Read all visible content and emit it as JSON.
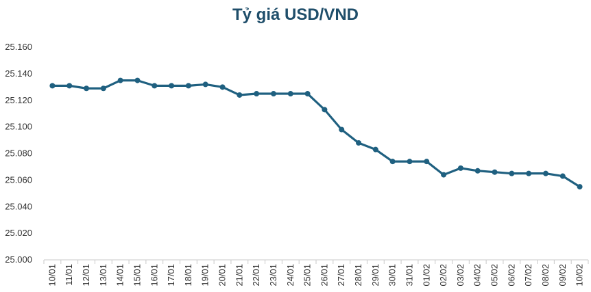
{
  "chart_data": {
    "type": "line",
    "title": "Tỷ giá USD/VND",
    "xlabel": "",
    "ylabel": "",
    "ylim": [
      25000,
      25160
    ],
    "y_ticks": [
      "25.000",
      "25.020",
      "25.040",
      "25.060",
      "25.080",
      "25.100",
      "25.120",
      "25.140",
      "25.160"
    ],
    "grid": false,
    "line_color": "#1f6080",
    "title_color": "#1f4e6a",
    "categories": [
      "10/01",
      "11/01",
      "12/01",
      "13/01",
      "14/01",
      "15/01",
      "16/01",
      "17/01",
      "18/01",
      "19/01",
      "20/01",
      "21/01",
      "22/01",
      "23/01",
      "24/01",
      "25/01",
      "26/01",
      "27/01",
      "28/01",
      "29/01",
      "30/01",
      "31/01",
      "01/02",
      "02/02",
      "03/02",
      "04/02",
      "05/02",
      "06/02",
      "07/02",
      "08/02",
      "09/02",
      "10/02"
    ],
    "series": [
      {
        "values": [
          25131,
          25131,
          25129,
          25129,
          25135,
          25135,
          25131,
          25131,
          25131,
          25132,
          25130,
          25124,
          25125,
          25125,
          25125,
          25125,
          25113,
          25098,
          25088,
          25083,
          25074,
          25074,
          25074,
          25064,
          25069,
          25067,
          25066,
          25065,
          25065,
          25065,
          25063,
          25055
        ]
      }
    ]
  }
}
